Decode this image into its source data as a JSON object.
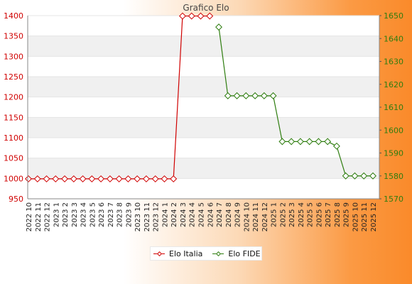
{
  "chart_data": {
    "type": "line",
    "title": "Grafico Elo",
    "categories": [
      "2022 10",
      "2022 11",
      "2022 12",
      "2023 1",
      "2023 2",
      "2023 3",
      "2023 4",
      "2023 5",
      "2023 6",
      "2023 7",
      "2023 8",
      "2023 9",
      "2023 10",
      "2023 11",
      "2023 12",
      "2024 1",
      "2024 2",
      "2024 3",
      "2024 4",
      "2024 5",
      "2024 6",
      "2024 7",
      "2024 8",
      "2024 9",
      "2024 10",
      "2024 11",
      "2024 12",
      "2025 1",
      "2025 2",
      "2025 3",
      "2025 4",
      "2025 5",
      "2025 6",
      "2025 7",
      "2025 8",
      "2025 9",
      "2025 10",
      "2025 11",
      "2025 12"
    ],
    "series": [
      {
        "name": "Elo Italia",
        "axis": "left",
        "color": "#d00000",
        "values": [
          999,
          999,
          999,
          999,
          999,
          999,
          999,
          999,
          999,
          999,
          999,
          999,
          999,
          999,
          999,
          999,
          999,
          1399,
          1399,
          1399,
          1399,
          null,
          null,
          null,
          null,
          null,
          null,
          null,
          null,
          null,
          null,
          null,
          null,
          null,
          null,
          null,
          null,
          null,
          null
        ]
      },
      {
        "name": "Elo FIDE",
        "axis": "right",
        "color": "#2e7d0f",
        "values": [
          null,
          null,
          null,
          null,
          null,
          null,
          null,
          null,
          null,
          null,
          null,
          null,
          null,
          null,
          null,
          null,
          null,
          null,
          null,
          null,
          null,
          1645,
          1615,
          1615,
          1615,
          1615,
          1615,
          1615,
          1595,
          1595,
          1595,
          1595,
          1595,
          1595,
          1593,
          1580,
          1580,
          1580,
          1580
        ]
      }
    ],
    "y_left": {
      "min": 950,
      "max": 1400,
      "ticks": [
        950,
        1000,
        1050,
        1100,
        1150,
        1200,
        1250,
        1300,
        1350,
        1400
      ]
    },
    "y_right": {
      "min": 1570,
      "max": 1650,
      "ticks": [
        1570,
        1580,
        1590,
        1600,
        1610,
        1620,
        1630,
        1640,
        1650
      ]
    },
    "grid": "horizontal bands",
    "legend": "bottom-center"
  }
}
